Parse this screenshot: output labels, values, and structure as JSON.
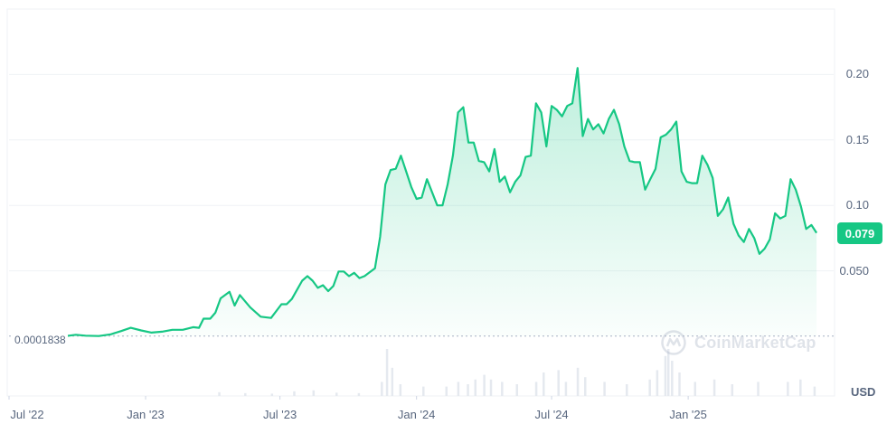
{
  "chart_data": {
    "type": "area",
    "series": [
      {
        "points": [
          [
            "2022-09-16",
            0.0001838
          ],
          [
            "2022-09-29",
            0.0012
          ],
          [
            "2022-10-12",
            0.0005
          ],
          [
            "2022-10-30",
            0.0002
          ],
          [
            "2022-11-15",
            0.0015
          ],
          [
            "2022-11-29",
            0.004
          ],
          [
            "2022-12-12",
            0.0065
          ],
          [
            "2022-12-26",
            0.0045
          ],
          [
            "2023-01-09",
            0.0028
          ],
          [
            "2023-01-23",
            0.0035
          ],
          [
            "2023-02-06",
            0.005
          ],
          [
            "2023-02-20",
            0.005
          ],
          [
            "2023-03-06",
            0.007
          ],
          [
            "2023-03-14",
            0.0065
          ],
          [
            "2023-03-20",
            0.0135
          ],
          [
            "2023-03-29",
            0.0135
          ],
          [
            "2023-04-05",
            0.018
          ],
          [
            "2023-04-12",
            0.029
          ],
          [
            "2023-04-24",
            0.034
          ],
          [
            "2023-05-01",
            0.0235
          ],
          [
            "2023-05-08",
            0.0315
          ],
          [
            "2023-05-22",
            0.022
          ],
          [
            "2023-06-05",
            0.015
          ],
          [
            "2023-06-19",
            0.014
          ],
          [
            "2023-07-03",
            0.0245
          ],
          [
            "2023-07-10",
            0.0245
          ],
          [
            "2023-07-17",
            0.0285
          ],
          [
            "2023-07-24",
            0.0355
          ],
          [
            "2023-07-31",
            0.0425
          ],
          [
            "2023-08-07",
            0.046
          ],
          [
            "2023-08-14",
            0.0425
          ],
          [
            "2023-08-21",
            0.037
          ],
          [
            "2023-08-28",
            0.039
          ],
          [
            "2023-09-04",
            0.0345
          ],
          [
            "2023-09-11",
            0.0385
          ],
          [
            "2023-09-18",
            0.0495
          ],
          [
            "2023-09-25",
            0.0495
          ],
          [
            "2023-10-02",
            0.046
          ],
          [
            "2023-10-09",
            0.0485
          ],
          [
            "2023-10-16",
            0.0445
          ],
          [
            "2023-10-23",
            0.046
          ],
          [
            "2023-11-06",
            0.052
          ],
          [
            "2023-11-13",
            0.076
          ],
          [
            "2023-11-20",
            0.116
          ],
          [
            "2023-11-27",
            0.127
          ],
          [
            "2023-12-04",
            0.128
          ],
          [
            "2023-12-11",
            0.138
          ],
          [
            "2023-12-18",
            0.126
          ],
          [
            "2023-12-25",
            0.114
          ],
          [
            "2024-01-01",
            0.105
          ],
          [
            "2024-01-08",
            0.106
          ],
          [
            "2024-01-15",
            0.12
          ],
          [
            "2024-01-22",
            0.11
          ],
          [
            "2024-01-29",
            0.1
          ],
          [
            "2024-02-05",
            0.1
          ],
          [
            "2024-02-12",
            0.116
          ],
          [
            "2024-02-19",
            0.138
          ],
          [
            "2024-02-26",
            0.171
          ],
          [
            "2024-03-04",
            0.175
          ],
          [
            "2024-03-11",
            0.148
          ],
          [
            "2024-03-18",
            0.148
          ],
          [
            "2024-03-25",
            0.134
          ],
          [
            "2024-04-01",
            0.133
          ],
          [
            "2024-04-08",
            0.126
          ],
          [
            "2024-04-15",
            0.143
          ],
          [
            "2024-04-22",
            0.118
          ],
          [
            "2024-04-29",
            0.122
          ],
          [
            "2024-05-06",
            0.11
          ],
          [
            "2024-05-13",
            0.118
          ],
          [
            "2024-05-20",
            0.123
          ],
          [
            "2024-05-27",
            0.137
          ],
          [
            "2024-06-03",
            0.138
          ],
          [
            "2024-06-10",
            0.178
          ],
          [
            "2024-06-17",
            0.171
          ],
          [
            "2024-06-24",
            0.145
          ],
          [
            "2024-07-01",
            0.176
          ],
          [
            "2024-07-08",
            0.173
          ],
          [
            "2024-07-15",
            0.168
          ],
          [
            "2024-07-22",
            0.176
          ],
          [
            "2024-07-29",
            0.178
          ],
          [
            "2024-08-05",
            0.205
          ],
          [
            "2024-08-12",
            0.153
          ],
          [
            "2024-08-19",
            0.166
          ],
          [
            "2024-08-26",
            0.158
          ],
          [
            "2024-09-02",
            0.162
          ],
          [
            "2024-09-09",
            0.155
          ],
          [
            "2024-09-16",
            0.166
          ],
          [
            "2024-09-23",
            0.173
          ],
          [
            "2024-09-30",
            0.162
          ],
          [
            "2024-10-07",
            0.145
          ],
          [
            "2024-10-14",
            0.134
          ],
          [
            "2024-10-21",
            0.133
          ],
          [
            "2024-10-28",
            0.133
          ],
          [
            "2024-11-04",
            0.112
          ],
          [
            "2024-11-11",
            0.12
          ],
          [
            "2024-11-18",
            0.128
          ],
          [
            "2024-11-25",
            0.152
          ],
          [
            "2024-12-02",
            0.154
          ],
          [
            "2024-12-09",
            0.158
          ],
          [
            "2024-12-16",
            0.164
          ],
          [
            "2024-12-23",
            0.126
          ],
          [
            "2024-12-30",
            0.118
          ],
          [
            "2025-01-06",
            0.117
          ],
          [
            "2025-01-13",
            0.117
          ],
          [
            "2025-01-20",
            0.138
          ],
          [
            "2025-01-27",
            0.131
          ],
          [
            "2025-02-03",
            0.121
          ],
          [
            "2025-02-10",
            0.092
          ],
          [
            "2025-02-17",
            0.097
          ],
          [
            "2025-02-24",
            0.106
          ],
          [
            "2025-03-03",
            0.086
          ],
          [
            "2025-03-10",
            0.077
          ],
          [
            "2025-03-17",
            0.072
          ],
          [
            "2025-03-24",
            0.082
          ],
          [
            "2025-03-31",
            0.075
          ],
          [
            "2025-04-07",
            0.063
          ],
          [
            "2025-04-14",
            0.067
          ],
          [
            "2025-04-21",
            0.074
          ],
          [
            "2025-04-28",
            0.094
          ],
          [
            "2025-05-05",
            0.09
          ],
          [
            "2025-05-12",
            0.092
          ],
          [
            "2025-05-19",
            0.12
          ],
          [
            "2025-05-26",
            0.112
          ],
          [
            "2025-06-02",
            0.099
          ],
          [
            "2025-06-09",
            0.082
          ],
          [
            "2025-06-16",
            0.085
          ],
          [
            "2025-06-23",
            0.079
          ]
        ]
      }
    ],
    "volume_relative": [
      [
        "2023-04-10",
        0.08
      ],
      [
        "2023-05-15",
        0.06
      ],
      [
        "2023-06-20",
        0.05
      ],
      [
        "2023-07-20",
        0.1
      ],
      [
        "2023-08-15",
        0.12
      ],
      [
        "2023-09-15",
        0.07
      ],
      [
        "2023-10-15",
        0.06
      ],
      [
        "2023-11-15",
        0.3
      ],
      [
        "2023-11-22",
        1.0
      ],
      [
        "2023-11-29",
        0.6
      ],
      [
        "2023-12-10",
        0.25
      ],
      [
        "2024-01-10",
        0.2
      ],
      [
        "2024-02-10",
        0.2
      ],
      [
        "2024-02-26",
        0.3
      ],
      [
        "2024-03-10",
        0.25
      ],
      [
        "2024-03-20",
        0.35
      ],
      [
        "2024-04-01",
        0.45
      ],
      [
        "2024-04-10",
        0.35
      ],
      [
        "2024-04-25",
        0.3
      ],
      [
        "2024-05-15",
        0.25
      ],
      [
        "2024-06-10",
        0.3
      ],
      [
        "2024-06-20",
        0.5
      ],
      [
        "2024-07-10",
        0.55
      ],
      [
        "2024-07-20",
        0.3
      ],
      [
        "2024-08-05",
        0.6
      ],
      [
        "2024-08-15",
        0.4
      ],
      [
        "2024-09-10",
        0.3
      ],
      [
        "2024-10-10",
        0.25
      ],
      [
        "2024-11-10",
        0.35
      ],
      [
        "2024-11-20",
        0.55
      ],
      [
        "2024-12-01",
        0.85
      ],
      [
        "2024-12-05",
        1.0
      ],
      [
        "2024-12-10",
        0.75
      ],
      [
        "2024-12-20",
        0.5
      ],
      [
        "2025-01-10",
        0.3
      ],
      [
        "2025-02-05",
        0.35
      ],
      [
        "2025-03-01",
        0.25
      ],
      [
        "2025-04-05",
        0.3
      ],
      [
        "2025-05-15",
        0.3
      ],
      [
        "2025-06-01",
        0.35
      ],
      [
        "2025-06-20",
        0.2
      ]
    ],
    "x_range": [
      "2022-07-01",
      "2025-07-16"
    ],
    "y_range": [
      0,
      0.25
    ],
    "x_ticks": [
      {
        "date": "2022-07-01",
        "label": "Jul '22"
      },
      {
        "date": "2023-01-01",
        "label": "Jan '23"
      },
      {
        "date": "2023-07-01",
        "label": "Jul '23"
      },
      {
        "date": "2024-01-01",
        "label": "Jan '24"
      },
      {
        "date": "2024-07-01",
        "label": "Jul '24"
      },
      {
        "date": "2025-01-01",
        "label": "Jan '25"
      }
    ],
    "y_ticks": [
      {
        "value": 0.2,
        "label": "0.20"
      },
      {
        "value": 0.15,
        "label": "0.15"
      },
      {
        "value": 0.1,
        "label": "0.10"
      },
      {
        "value": 0.05,
        "label": "0.050"
      }
    ],
    "baseline": {
      "value": 0.0001838,
      "label": "0.0001838"
    },
    "current_price": {
      "value": 0.079,
      "label": "0.079"
    },
    "currency": "USD",
    "watermark": "CoinMarketCap",
    "colors": {
      "line": "#16c784",
      "grid": "#eff2f5",
      "text": "#58667e",
      "volume": "#e5e9ef"
    },
    "grid": true
  }
}
